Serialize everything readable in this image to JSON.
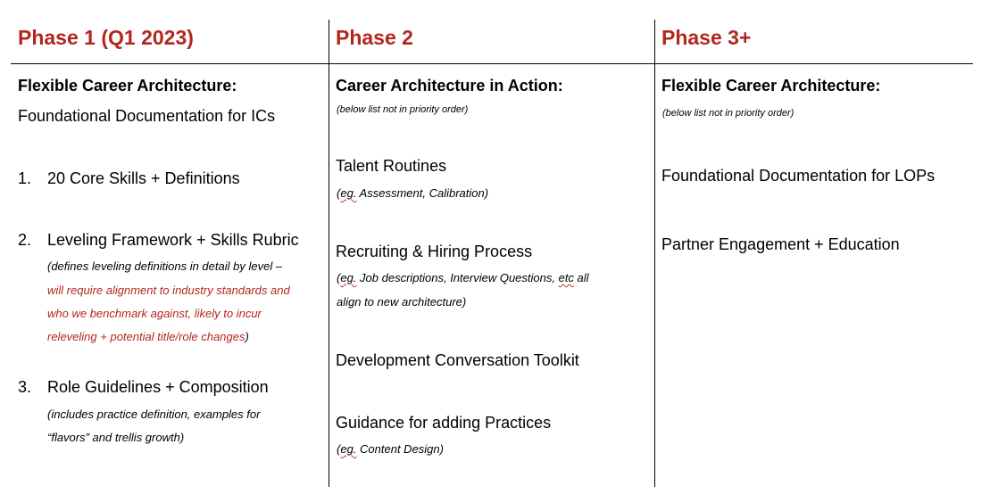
{
  "col1": {
    "header": "Phase 1 (Q1 2023)",
    "title": "Flexible Career Architecture:",
    "subtitle": "Foundational Documentation for ICs",
    "items": [
      {
        "num": "1.",
        "label": "20 Core Skills + Definitions"
      },
      {
        "num": "2.",
        "label": "Leveling Framework + Skills Rubric",
        "note_prefix": "(defines leveling definitions in detail by level –",
        "note_red_1": "will require alignment to industry standards and",
        "note_red_2": "who we benchmark against, likely to incur",
        "note_red_3": "releveling + potential title/role changes",
        "note_suffix": ")"
      },
      {
        "num": "3.",
        "label": "Role Guidelines + Composition",
        "note_1": "(includes practice definition, examples for",
        "note_2": "“flavors” and trellis growth)"
      }
    ]
  },
  "col2": {
    "header": "Phase 2",
    "title": "Career Architecture in Action:",
    "priority_note": "(below list not in priority order)",
    "items": [
      {
        "label": "Talent Routines",
        "eg": "eg.",
        "note": " Assessment, Calibration)"
      },
      {
        "label": "Recruiting & Hiring Process",
        "eg": "eg.",
        "note_a": " Job descriptions, Interview Questions, ",
        "etc": "etc",
        "note_b": " all",
        "note_2": "align to new architecture)"
      },
      {
        "label": "Development Conversation Toolkit"
      },
      {
        "label": "Guidance for adding Practices",
        "eg": "eg.",
        "note": " Content Design)"
      }
    ]
  },
  "col3": {
    "header": "Phase 3+",
    "title": "Flexible Career Architecture:",
    "priority_note": "(below list not in priority order)",
    "items": [
      {
        "label": "Foundational Documentation for LOPs"
      },
      {
        "label": "Partner Engagement + Education"
      }
    ]
  }
}
